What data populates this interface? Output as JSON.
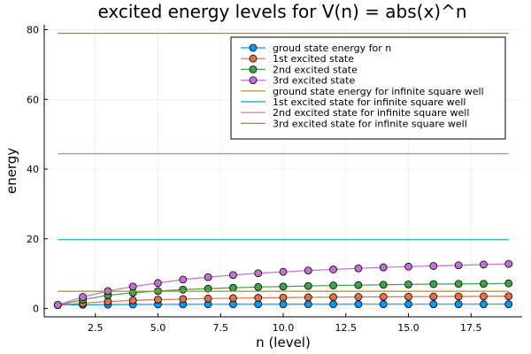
{
  "chart_data": {
    "type": "line",
    "title": "excited energy levels for V(n) = abs(x)^n",
    "xlabel": "n (level)",
    "ylabel": "energy",
    "xlim": [
      0.46,
      19.54
    ],
    "ylim": [
      -2.4,
      81.4
    ],
    "xticks": [
      2.5,
      5.0,
      7.5,
      10.0,
      12.5,
      15.0,
      17.5
    ],
    "xtick_labels": [
      "2.5",
      "5.0",
      "7.5",
      "10.0",
      "12.5",
      "15.0",
      "17.5"
    ],
    "yticks": [
      0,
      20,
      40,
      60,
      80
    ],
    "ytick_labels": [
      "0",
      "20",
      "40",
      "60",
      "80"
    ],
    "grid": true,
    "legend_position": "top-right",
    "x": [
      1,
      2,
      3,
      4,
      5,
      6,
      7,
      8,
      9,
      10,
      11,
      12,
      13,
      14,
      15,
      16,
      17,
      18,
      19
    ],
    "series": [
      {
        "name": "groud state energy for n",
        "color": "#009af9",
        "marker": true,
        "values": [
          1.0,
          1.06,
          1.11,
          1.15,
          1.17,
          1.19,
          1.2,
          1.21,
          1.21,
          1.22,
          1.22,
          1.22,
          1.23,
          1.23,
          1.23,
          1.23,
          1.23,
          1.23,
          1.23
        ]
      },
      {
        "name": "1st excited state",
        "color": "#e26f46",
        "marker": true,
        "values": [
          1.0,
          1.5,
          2.0,
          2.3,
          2.55,
          2.7,
          2.85,
          2.95,
          3.05,
          3.12,
          3.2,
          3.25,
          3.3,
          3.35,
          3.38,
          3.42,
          3.45,
          3.48,
          3.5
        ]
      },
      {
        "name": "2nd excited state",
        "color": "#3da44d",
        "marker": true,
        "values": [
          1.0,
          2.5,
          3.8,
          4.5,
          5.0,
          5.4,
          5.7,
          5.95,
          6.15,
          6.3,
          6.45,
          6.6,
          6.7,
          6.8,
          6.9,
          7.0,
          7.05,
          7.1,
          7.2
        ]
      },
      {
        "name": "3rd excited state",
        "color": "#c271d2",
        "marker": true,
        "values": [
          1.0,
          3.3,
          5.0,
          6.3,
          7.3,
          8.3,
          9.0,
          9.6,
          10.1,
          10.5,
          10.9,
          11.2,
          11.5,
          11.8,
          12.0,
          12.2,
          12.4,
          12.6,
          12.8
        ]
      },
      {
        "name": "ground state energy for infinite square well",
        "color": "#ac8d18",
        "marker": false,
        "constant": 4.93
      },
      {
        "name": "1st excited state for infinite square well",
        "color": "#00a9ad",
        "marker": false,
        "constant": 19.74
      },
      {
        "name": "2nd excited state for infinite square well",
        "color": "#ed5d92",
        "marker": false,
        "constant": 44.41
      },
      {
        "name": "3rd excited state for infinite square well",
        "color": "#c68125",
        "marker": false,
        "constant": 78.96
      }
    ]
  }
}
